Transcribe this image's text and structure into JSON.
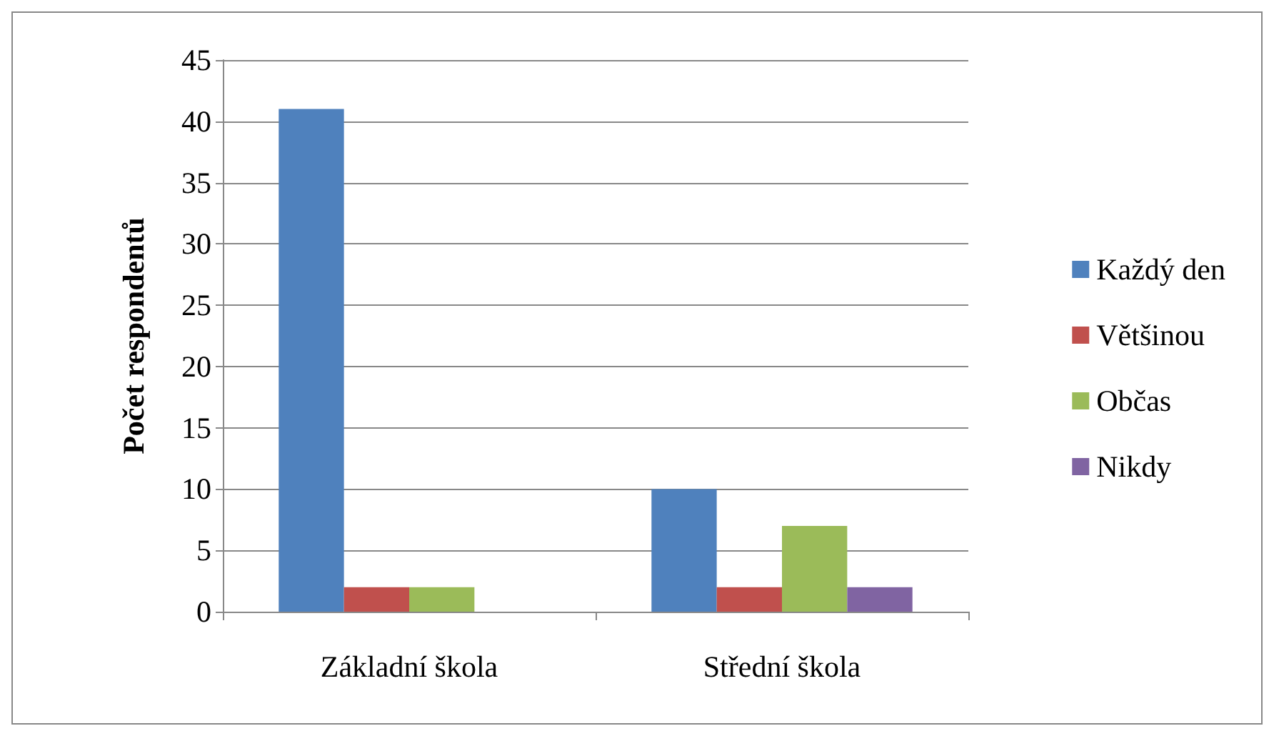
{
  "chart_data": {
    "type": "bar",
    "ylabel": "Počet respondentů",
    "categories": [
      "Základní škola",
      "Střední škola"
    ],
    "series": [
      {
        "name": "Každý den",
        "color": "#4f81bd",
        "values": [
          41,
          10
        ]
      },
      {
        "name": "Většinou",
        "color": "#c0504d",
        "values": [
          2,
          2
        ]
      },
      {
        "name": "Občas",
        "color": "#9bbb59",
        "values": [
          2,
          7
        ]
      },
      {
        "name": "Nikdy",
        "color": "#8064a2",
        "values": [
          0,
          2
        ]
      }
    ],
    "ylim": [
      0,
      45
    ],
    "yticks": [
      0,
      5,
      10,
      15,
      20,
      25,
      30,
      35,
      40,
      45
    ],
    "grid": "y",
    "legend": "right"
  }
}
